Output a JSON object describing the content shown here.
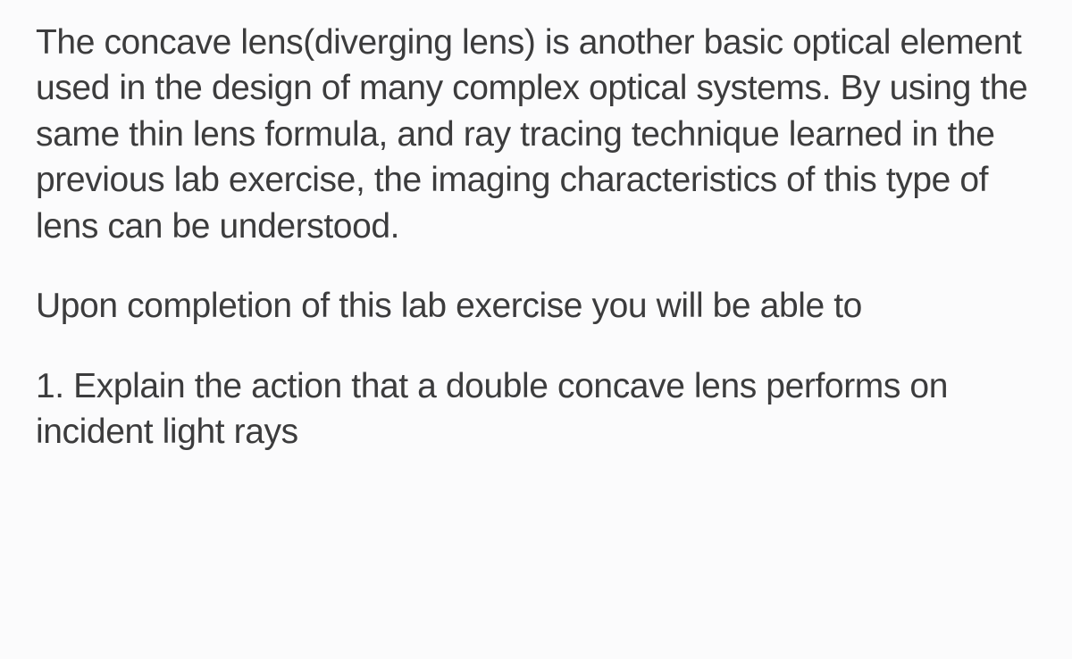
{
  "intro": "The concave lens(diverging lens) is another basic optical element used in the design of many complex optical systems. By using the same thin lens formula, and ray tracing technique learned in the previous lab exercise, the imaging characteristics of this type of lens can be understood.",
  "lead_in": "Upon completion of this lab exercise you will be able to",
  "items": [
    "1. Explain the action that a double concave lens performs on incident light rays"
  ],
  "text_color": "#3c3c3d",
  "background_color": "#fbfbfc",
  "font_size_pt": 29,
  "line_height": 1.32
}
